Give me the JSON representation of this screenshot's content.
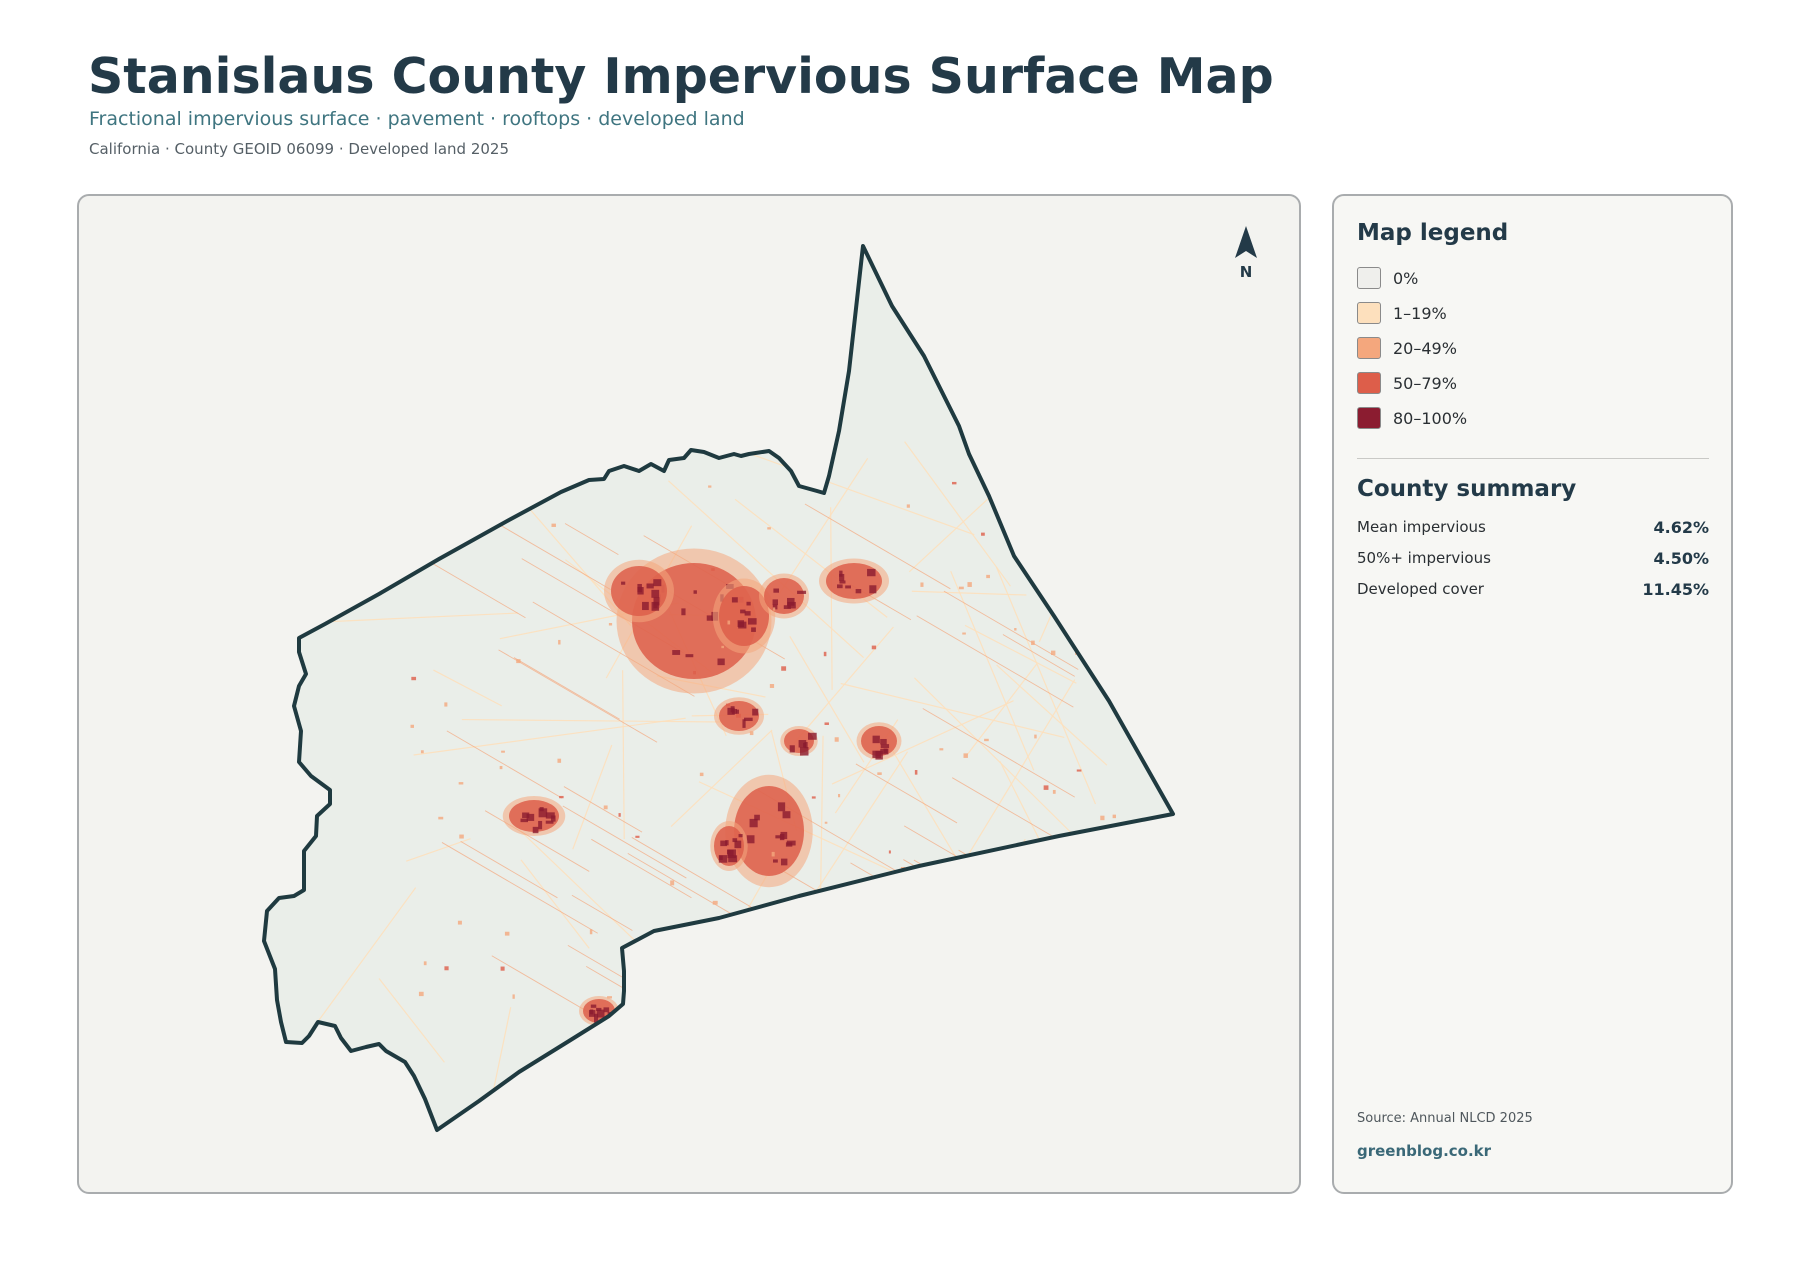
{
  "header": {
    "title": "Stanislaus County Impervious Surface Map",
    "subtitle": "Fractional impervious surface · pavement · rooftops · developed land",
    "meta": "California · County GEOID 06099 · Developed land 2025"
  },
  "map": {
    "north_label": "N",
    "colors": {
      "background": "#f3f3f0",
      "county_fill": "#eaeee9",
      "outline": "#1f3a40"
    }
  },
  "legend": {
    "title": "Map legend",
    "items": [
      {
        "label": "0%",
        "color": "#efefec"
      },
      {
        "label": "1–19%",
        "color": "#fde0bd"
      },
      {
        "label": "20–49%",
        "color": "#f4a77d"
      },
      {
        "label": "50–79%",
        "color": "#dd5e4a"
      },
      {
        "label": "80–100%",
        "color": "#8b1c30"
      }
    ]
  },
  "summary": {
    "title": "County summary",
    "rows": [
      {
        "label": "Mean impervious",
        "value": "4.62%"
      },
      {
        "label": "50%+ impervious",
        "value": "4.50%"
      },
      {
        "label": "Developed cover",
        "value": "11.45%"
      }
    ]
  },
  "footer": {
    "source": "Source: Annual NLCD 2025",
    "site": "greenblog.co.kr"
  }
}
